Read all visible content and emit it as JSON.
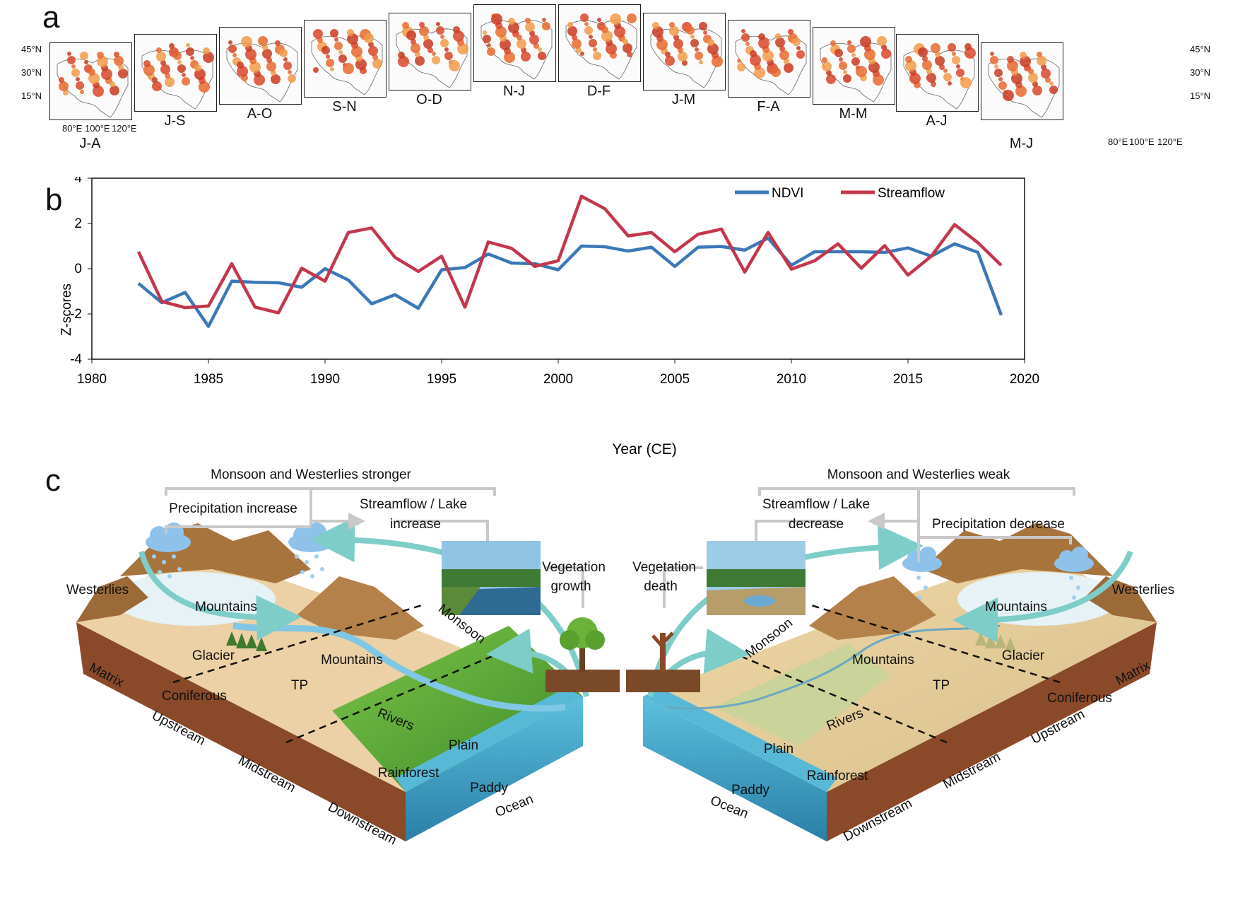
{
  "panel_a": {
    "letter": "a",
    "lat_labels": [
      "45°N",
      "30°N",
      "15°N"
    ],
    "lon_labels": [
      "80°E",
      "100°E",
      "120°E"
    ],
    "maps": [
      {
        "label": "J-A"
      },
      {
        "label": "J-S"
      },
      {
        "label": "A-O"
      },
      {
        "label": "S-N"
      },
      {
        "label": "O-D"
      },
      {
        "label": "N-J"
      },
      {
        "label": "D-F"
      },
      {
        "label": "J-M"
      },
      {
        "label": "F-A"
      },
      {
        "label": "M-M"
      },
      {
        "label": "A-J"
      },
      {
        "label": "M-J"
      }
    ]
  },
  "chart_data": {
    "type": "line",
    "panel_letter": "b",
    "xlabel": "Year (CE)",
    "ylabel": "Z-scores",
    "xlim": [
      1980,
      2020
    ],
    "ylim": [
      -4,
      4
    ],
    "xticks": [
      1980,
      1985,
      1990,
      1995,
      2000,
      2005,
      2010,
      2015,
      2020
    ],
    "yticks": [
      -4,
      -2,
      0,
      2,
      4
    ],
    "legend_position": "top-right",
    "x": [
      1982,
      1983,
      1984,
      1985,
      1986,
      1987,
      1988,
      1989,
      1990,
      1991,
      1992,
      1993,
      1994,
      1995,
      1996,
      1997,
      1998,
      1999,
      2000,
      2001,
      2002,
      2003,
      2004,
      2005,
      2006,
      2007,
      2008,
      2009,
      2010,
      2011,
      2012,
      2013,
      2014,
      2015,
      2016,
      2017,
      2018,
      2019
    ],
    "series": [
      {
        "name": "NDVI",
        "color": "#3a78b8",
        "values": [
          -0.65,
          -1.5,
          -1.05,
          -2.55,
          -0.55,
          -0.6,
          -0.62,
          -0.82,
          0.0,
          -0.5,
          -1.55,
          -1.15,
          -1.75,
          -0.05,
          0.05,
          0.65,
          0.25,
          0.22,
          -0.05,
          1.0,
          0.97,
          0.78,
          0.95,
          0.1,
          0.95,
          0.98,
          0.82,
          1.35,
          0.15,
          0.75,
          0.75,
          0.75,
          0.72,
          0.92,
          0.55,
          1.1,
          0.72,
          -2.05
        ]
      },
      {
        "name": "Streamflow",
        "color": "#c4364c",
        "values": [
          0.75,
          -1.45,
          -1.72,
          -1.65,
          0.22,
          -1.7,
          -1.95,
          0.02,
          -0.55,
          1.6,
          1.8,
          0.5,
          -0.12,
          0.55,
          -1.7,
          1.18,
          0.9,
          0.1,
          0.35,
          3.2,
          2.65,
          1.45,
          1.6,
          0.75,
          1.52,
          1.75,
          -0.15,
          1.6,
          -0.02,
          0.35,
          1.1,
          0.02,
          1.02,
          -0.28,
          0.55,
          1.95,
          1.15,
          0.15
        ]
      }
    ]
  },
  "panel_c": {
    "letter": "c",
    "left": {
      "header": "Monsoon and Westerlies stronger",
      "precip": "Precipitation increase",
      "stream_line1": "Streamflow / Lake",
      "stream_line2": "increase",
      "veg_line1": "Vegetation",
      "veg_line2": "growth",
      "westerlies": "Westerlies",
      "monsoon": "Monsoon",
      "mountains1": "Mountains",
      "mountains2": "Mountains",
      "glacier": "Glacier",
      "coniferous": "Coniferous",
      "tp": "TP",
      "rivers": "Rivers",
      "plain": "Plain",
      "rainforest": "Rainforest",
      "paddy": "Paddy",
      "ocean": "Ocean",
      "matrix": "Matrix",
      "upstream": "Upstream",
      "midstream": "Midstream",
      "downstream": "Downstream"
    },
    "right": {
      "header": "Monsoon and Westerlies weak",
      "precip": "Precipitation decrease",
      "stream_line1": "Streamflow / Lake",
      "stream_line2": "decrease",
      "veg_line1": "Vegetation",
      "veg_line2": "death",
      "westerlies": "Westerlies",
      "monsoon": "Monsoon",
      "mountains1": "Mountains",
      "mountains2": "Mountains",
      "glacier": "Glacier",
      "coniferous": "Coniferous",
      "tp": "TP",
      "rivers": "Rivers",
      "plain": "Plain",
      "rainforest": "Rainforest",
      "paddy": "Paddy",
      "ocean": "Ocean",
      "matrix": "Matrix",
      "upstream": "Upstream",
      "midstream": "Midstream",
      "downstream": "Downstream"
    },
    "colors": {
      "arrow": "#7ecdc8",
      "bracket": "#c8c8c8",
      "ocean": "#3aa3c6",
      "soil": "#8a4a2a",
      "plain": "#ecd1a6",
      "forest": "#5aa53a"
    }
  }
}
